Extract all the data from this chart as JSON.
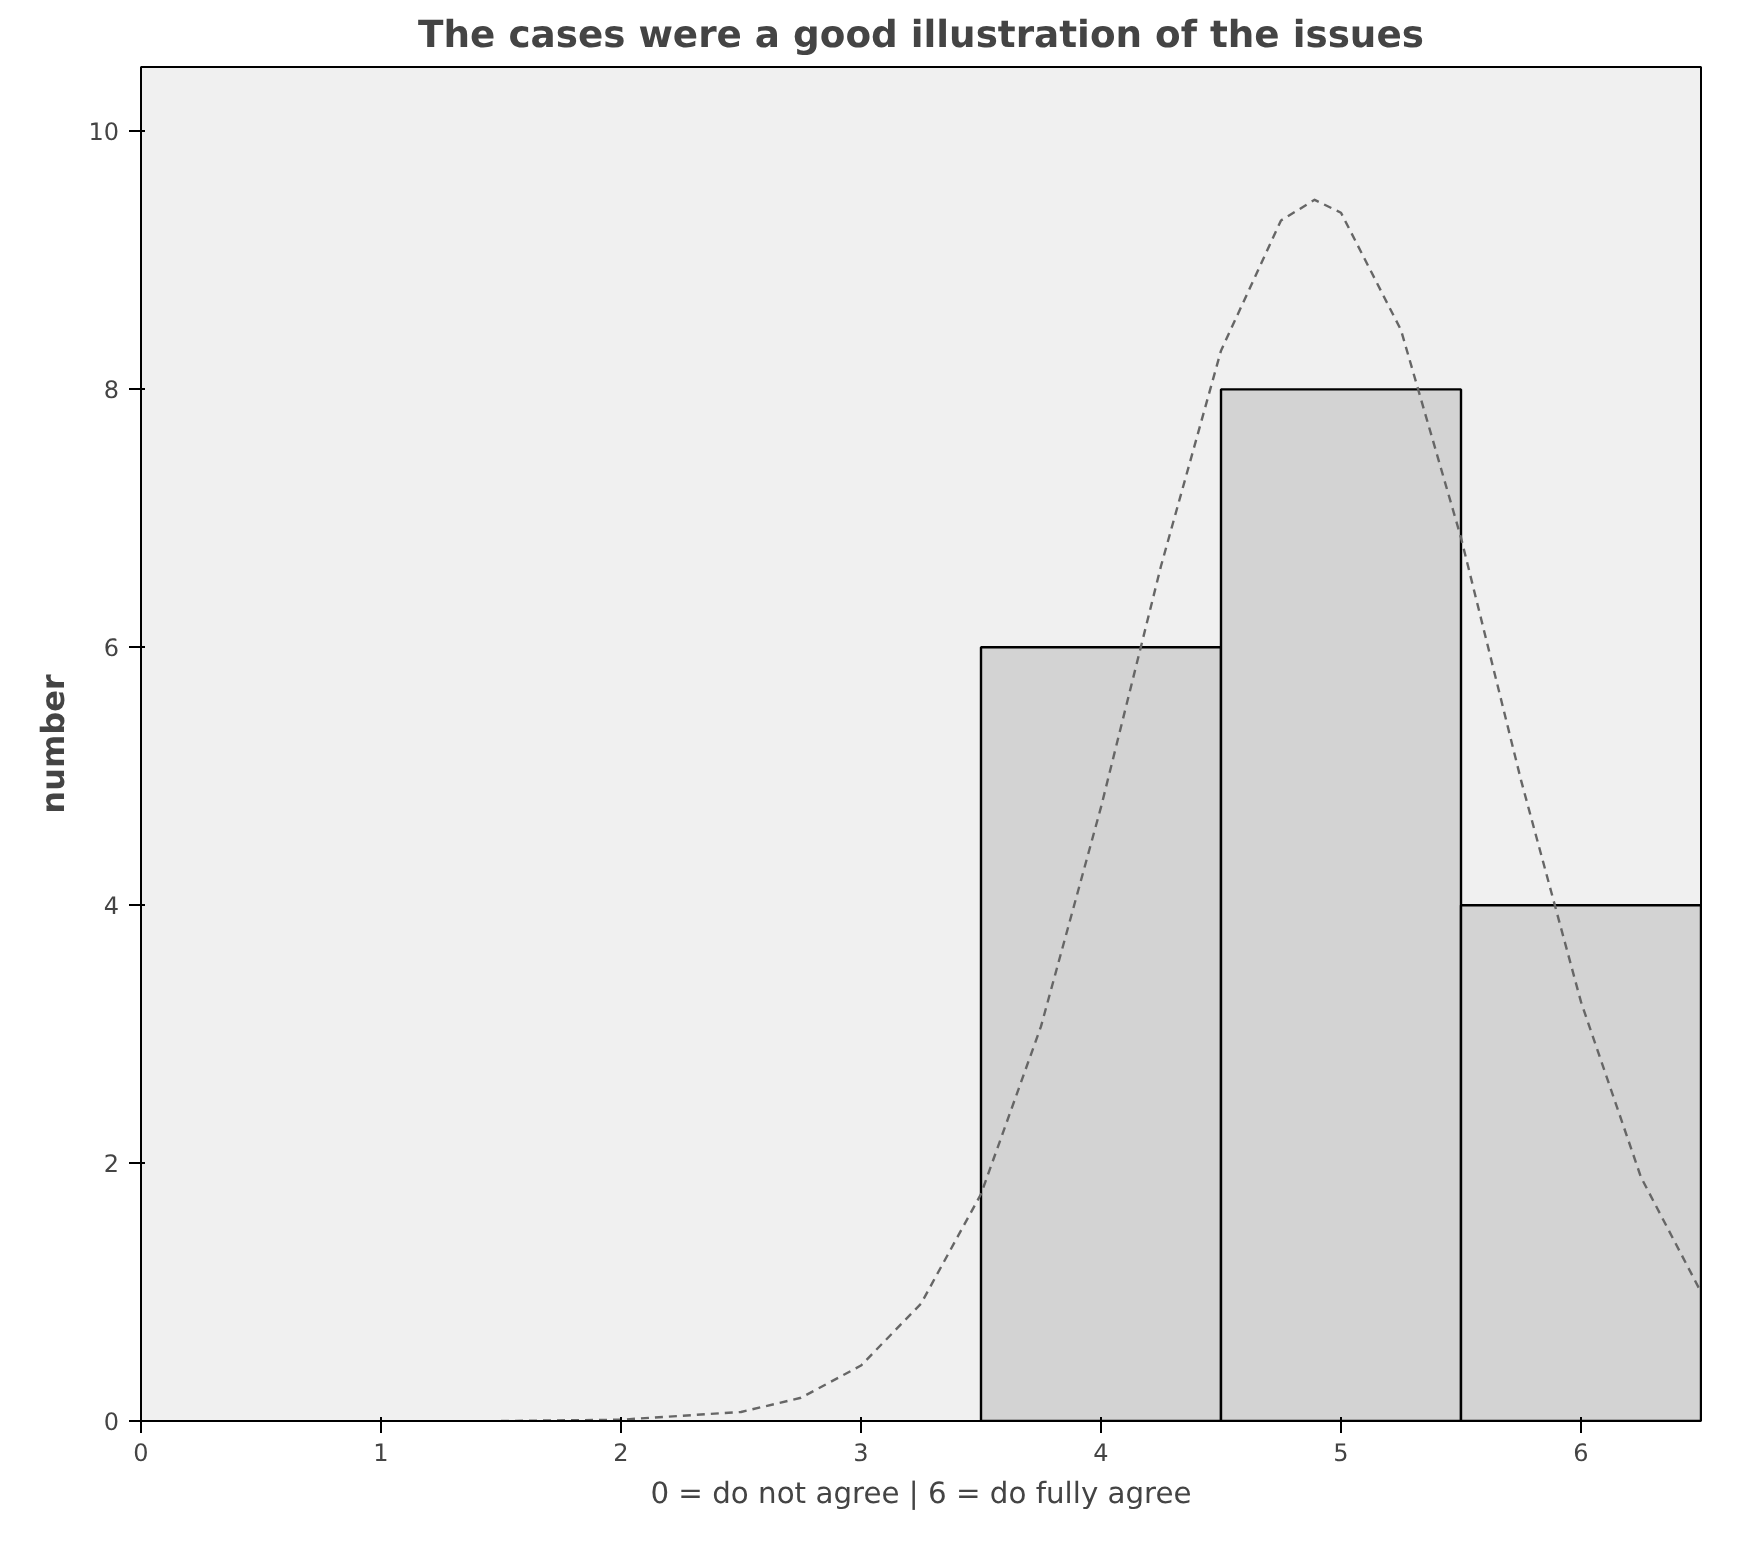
{
  "chart_data": {
    "type": "histogram",
    "title": "The cases were a good illustration of the issues",
    "xlabel": "0 = do not agree | 6 = do fully agree",
    "ylabel": "number",
    "bins": [
      3.5,
      4.5,
      5.5,
      6.5
    ],
    "values": [
      6,
      8,
      4
    ],
    "color": "#d3d3d3",
    "xlim": [
      0,
      6.5
    ],
    "ylim": [
      0,
      10.5
    ],
    "xticks": [
      0,
      1,
      2,
      3,
      4,
      5,
      6
    ],
    "yticks": [
      0,
      2,
      4,
      6,
      8,
      10
    ],
    "series": [
      {
        "type": "line",
        "color": "#666666",
        "line_style": "dashed",
        "x": [
          1.5,
          2.0,
          2.5,
          2.75,
          3.0,
          3.25,
          3.5,
          3.75,
          4.0,
          4.25,
          4.5,
          4.75,
          4.89,
          5.0,
          5.25,
          5.5,
          5.75,
          6.0,
          6.25,
          6.5
        ],
        "values": [
          0.0,
          0.01,
          0.07,
          0.18,
          0.43,
          0.91,
          1.76,
          3.06,
          4.76,
          6.63,
          8.3,
          9.31,
          9.47,
          9.37,
          8.46,
          6.85,
          4.97,
          3.25,
          1.89,
          1.0
        ]
      }
    ]
  }
}
